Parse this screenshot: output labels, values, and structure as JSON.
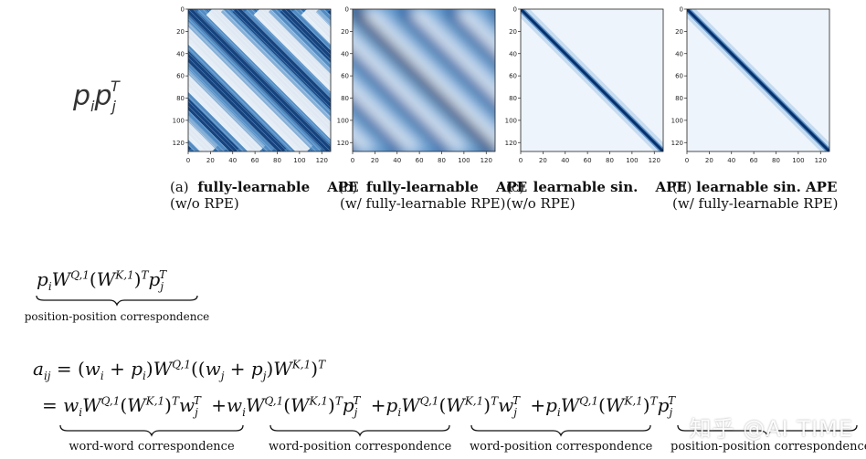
{
  "left_label": "p_i p_j^T",
  "subplots": [
    {
      "letter": "(a)",
      "title_bold": "fully-learnable",
      "title_tail": "APE",
      "sub": "(w/o RPE)",
      "style": "stripes"
    },
    {
      "letter": "(b)",
      "title_bold": "fully-learnable",
      "title_tail": "APE",
      "sub": "(w/ fully-learnable RPE)",
      "style": "blur"
    },
    {
      "letter": "(c)",
      "title_bold": "learnable sin.",
      "title_tail": "APE",
      "sub": "(w/o RPE)",
      "style": "diag"
    },
    {
      "letter": "(d)",
      "title_bold": "learnable sin. APE",
      "title_tail": "",
      "sub": "(w/ fully-learnable RPE)",
      "style": "diag"
    }
  ],
  "axis": {
    "xticks": [
      "0",
      "20",
      "40",
      "60",
      "80",
      "100",
      "120"
    ],
    "yticks": [
      "0",
      "20",
      "40",
      "60",
      "80",
      "100",
      "120"
    ],
    "range": [
      0,
      128
    ]
  },
  "colors": {
    "dark": "#08306b",
    "mid": "#2f6fb0",
    "light": "#dbe9f6",
    "bg": "#eef4fb"
  },
  "eq1": {
    "expr": "p_i W^{Q,1} (W^{K,1})^T p_j^T",
    "label": "position-position correspondence"
  },
  "eq2": {
    "lhs": "a_ij = (w_i + p_i) W^{Q,1} ((w_j + p_j) W^{K,1})^T",
    "terms": [
      {
        "expr": "w_i W^{Q,1} (W^{K,1})^T w_j^T",
        "label": "word-word correspondence"
      },
      {
        "expr": "w_i W^{Q,1} (W^{K,1})^T p_j^T",
        "label": "word-position correspondence"
      },
      {
        "expr": "p_i W^{Q,1} (W^{K,1})^T w_j^T",
        "label": "word-position correspondence"
      },
      {
        "expr": "p_i W^{Q,1} (W^{K,1})^T p_j^T",
        "label": "position-position correspondence"
      }
    ]
  },
  "watermark": "知乎 @AI TIME"
}
